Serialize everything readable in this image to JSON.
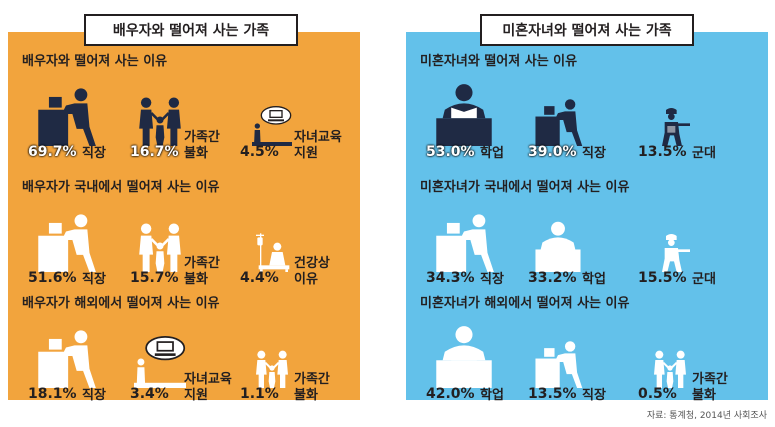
{
  "left": {
    "title": "배우자와 떨어져 사는 가족",
    "sections": [
      {
        "heading": "배우자와 떨어져 사는 이유",
        "items": [
          {
            "value": "69.7%",
            "label": "직장",
            "icon": "worker-at-desk-icon"
          },
          {
            "value": "16.7%",
            "label": "가족간\n불화",
            "icon": "family-conflict-icon"
          },
          {
            "value": "4.5%",
            "label": "자녀교육\n지원",
            "icon": "child-education-icon"
          }
        ]
      },
      {
        "heading": "배우자가 국내에서 떨어져 사는 이유",
        "items": [
          {
            "value": "51.6%",
            "label": "직장",
            "icon": "worker-at-desk-icon"
          },
          {
            "value": "15.7%",
            "label": "가족간\n불화",
            "icon": "family-conflict-icon"
          },
          {
            "value": "4.4%",
            "label": "건강상\n이유",
            "icon": "health-iv-icon"
          }
        ]
      },
      {
        "heading": "배우자가 해외에서 떨어져 사는 이유",
        "items": [
          {
            "value": "18.1%",
            "label": "직장",
            "icon": "worker-at-desk-icon"
          },
          {
            "value": "3.4%",
            "label": "자녀교육\n지원",
            "icon": "child-education-icon"
          },
          {
            "value": "1.1%",
            "label": "가족간\n불화",
            "icon": "family-conflict-icon"
          }
        ]
      }
    ]
  },
  "right": {
    "title": "미혼자녀와 떨어져 사는 가족",
    "sections": [
      {
        "heading": "미혼자녀와 떨어져 사는 이유",
        "items": [
          {
            "value": "53.0%",
            "label": "학업",
            "icon": "student-reading-icon"
          },
          {
            "value": "39.0%",
            "label": "직장",
            "icon": "worker-at-desk-icon"
          },
          {
            "value": "13.5%",
            "label": "군대",
            "icon": "soldier-icon"
          }
        ]
      },
      {
        "heading": "미혼자녀가 국내에서 떨어져 사는 이유",
        "items": [
          {
            "value": "34.3%",
            "label": "직장",
            "icon": "worker-at-desk-icon"
          },
          {
            "value": "33.2%",
            "label": "학업",
            "icon": "student-reading-icon"
          },
          {
            "value": "15.5%",
            "label": "군대",
            "icon": "soldier-icon"
          }
        ]
      },
      {
        "heading": "미혼자녀가 해외에서 떨어져 사는 이유",
        "items": [
          {
            "value": "42.0%",
            "label": "학업",
            "icon": "student-reading-icon"
          },
          {
            "value": "13.5%",
            "label": "직장",
            "icon": "worker-at-desk-icon"
          },
          {
            "value": "0.5%",
            "label": "가족간\n불화",
            "icon": "family-conflict-icon"
          }
        ]
      }
    ]
  },
  "source": "자료: 통계청, 2014년 사회조사",
  "colors": {
    "left_bg": "#f2a43d",
    "right_bg": "#63c1ea",
    "dark": "#231f20",
    "fill_dark": "#1f2a44",
    "fill_light": "#ffffff"
  },
  "chart_data": [
    {
      "type": "bar",
      "title": "배우자와 떨어져 사는 이유",
      "categories": [
        "직장",
        "가족간 불화",
        "자녀교육 지원"
      ],
      "values": [
        69.7,
        16.7,
        4.5
      ]
    },
    {
      "type": "bar",
      "title": "배우자가 국내에서 떨어져 사는 이유",
      "categories": [
        "직장",
        "가족간 불화",
        "건강상 이유"
      ],
      "values": [
        51.6,
        15.7,
        4.4
      ]
    },
    {
      "type": "bar",
      "title": "배우자가 해외에서 떨어져 사는 이유",
      "categories": [
        "직장",
        "자녀교육 지원",
        "가족간 불화"
      ],
      "values": [
        18.1,
        3.4,
        1.1
      ]
    },
    {
      "type": "bar",
      "title": "미혼자녀와 떨어져 사는 이유",
      "categories": [
        "학업",
        "직장",
        "군대"
      ],
      "values": [
        53.0,
        39.0,
        13.5
      ]
    },
    {
      "type": "bar",
      "title": "미혼자녀가 국내에서 떨어져 사는 이유",
      "categories": [
        "직장",
        "학업",
        "군대"
      ],
      "values": [
        34.3,
        33.2,
        15.5
      ]
    },
    {
      "type": "bar",
      "title": "미혼자녀가 해외에서 떨어져 사는 이유",
      "categories": [
        "학업",
        "직장",
        "가족간 불화"
      ],
      "values": [
        42.0,
        13.5,
        0.5
      ]
    }
  ]
}
